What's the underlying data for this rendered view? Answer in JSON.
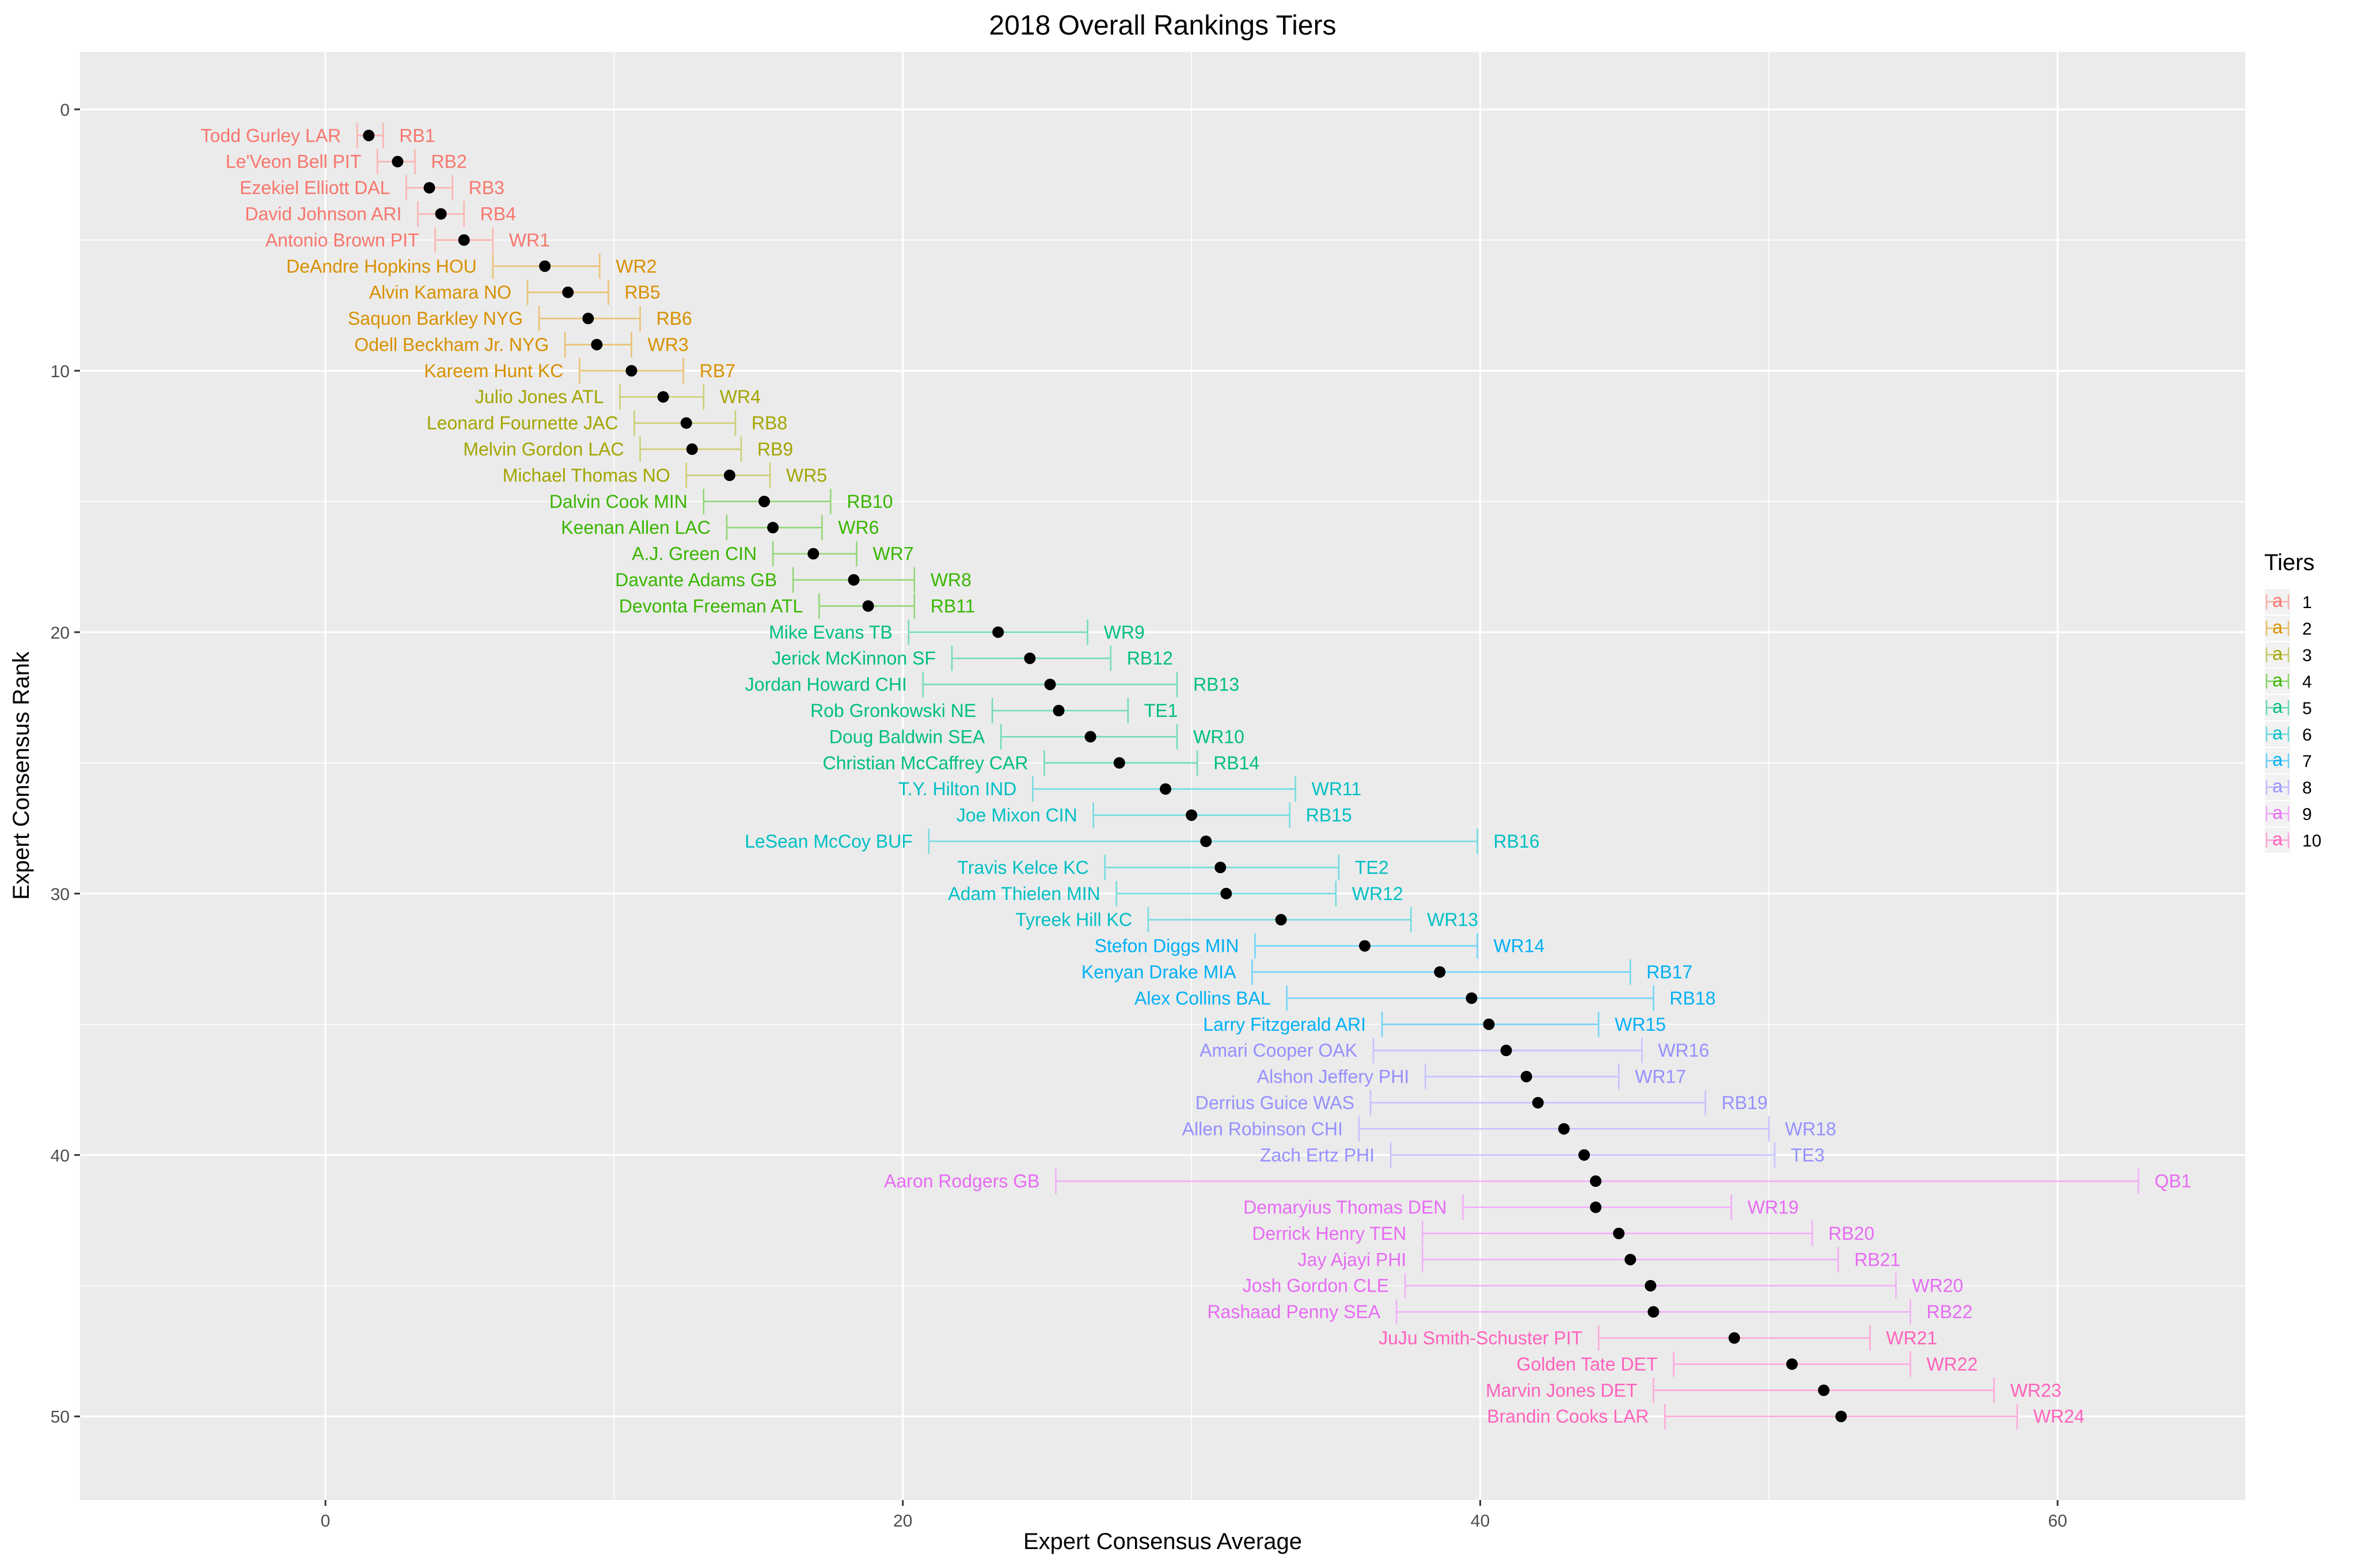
{
  "chart_data": {
    "type": "scatter",
    "title": "2018 Overall Rankings Tiers",
    "xlabel": "Expert Consensus Average",
    "ylabel": "Expert Consensus Rank",
    "xlim": [
      -8.5,
      66.5
    ],
    "ylim": [
      -2.2,
      53.2
    ],
    "y_reversed": true,
    "x_ticks": [
      0,
      20,
      40,
      60
    ],
    "y_ticks": [
      0,
      10,
      20,
      30,
      40,
      50
    ],
    "grid": true,
    "legend": {
      "title": "Tiers",
      "placement": "right",
      "entries": [
        "1",
        "2",
        "3",
        "4",
        "5",
        "6",
        "7",
        "8",
        "9",
        "10"
      ],
      "glyph": "a"
    },
    "tier_colors": [
      "#F8766D",
      "#D89000",
      "#A3A500",
      "#39B600",
      "#00BF7D",
      "#00BFC4",
      "#00B0F6",
      "#9590FF",
      "#E76BF3",
      "#FF62BC"
    ],
    "points": [
      {
        "rank": 1,
        "name": "Todd Gurley LAR",
        "pos": "RB1",
        "avg": 1.5,
        "lo": 1.1,
        "hi": 2.0,
        "tier": 1
      },
      {
        "rank": 2,
        "name": "Le'Veon Bell PIT",
        "pos": "RB2",
        "avg": 2.5,
        "lo": 1.8,
        "hi": 3.1,
        "tier": 1
      },
      {
        "rank": 3,
        "name": "Ezekiel Elliott DAL",
        "pos": "RB3",
        "avg": 3.6,
        "lo": 2.8,
        "hi": 4.4,
        "tier": 1
      },
      {
        "rank": 4,
        "name": "David Johnson ARI",
        "pos": "RB4",
        "avg": 4.0,
        "lo": 3.2,
        "hi": 4.8,
        "tier": 1
      },
      {
        "rank": 5,
        "name": "Antonio Brown PIT",
        "pos": "WR1",
        "avg": 4.8,
        "lo": 3.8,
        "hi": 5.8,
        "tier": 1
      },
      {
        "rank": 6,
        "name": "DeAndre Hopkins HOU",
        "pos": "WR2",
        "avg": 7.6,
        "lo": 5.8,
        "hi": 9.5,
        "tier": 2
      },
      {
        "rank": 7,
        "name": "Alvin Kamara NO",
        "pos": "RB5",
        "avg": 8.4,
        "lo": 7.0,
        "hi": 9.8,
        "tier": 2
      },
      {
        "rank": 8,
        "name": "Saquon Barkley NYG",
        "pos": "RB6",
        "avg": 9.1,
        "lo": 7.4,
        "hi": 10.9,
        "tier": 2
      },
      {
        "rank": 9,
        "name": "Odell Beckham Jr. NYG",
        "pos": "WR3",
        "avg": 9.4,
        "lo": 8.3,
        "hi": 10.6,
        "tier": 2
      },
      {
        "rank": 10,
        "name": "Kareem Hunt KC",
        "pos": "RB7",
        "avg": 10.6,
        "lo": 8.8,
        "hi": 12.4,
        "tier": 2
      },
      {
        "rank": 11,
        "name": "Julio Jones ATL",
        "pos": "WR4",
        "avg": 11.7,
        "lo": 10.2,
        "hi": 13.1,
        "tier": 3
      },
      {
        "rank": 12,
        "name": "Leonard Fournette JAC",
        "pos": "RB8",
        "avg": 12.5,
        "lo": 10.7,
        "hi": 14.2,
        "tier": 3
      },
      {
        "rank": 13,
        "name": "Melvin Gordon LAC",
        "pos": "RB9",
        "avg": 12.7,
        "lo": 10.9,
        "hi": 14.4,
        "tier": 3
      },
      {
        "rank": 14,
        "name": "Michael Thomas NO",
        "pos": "WR5",
        "avg": 14.0,
        "lo": 12.5,
        "hi": 15.4,
        "tier": 3
      },
      {
        "rank": 15,
        "name": "Dalvin Cook MIN",
        "pos": "RB10",
        "avg": 15.2,
        "lo": 13.1,
        "hi": 17.5,
        "tier": 4
      },
      {
        "rank": 16,
        "name": "Keenan Allen LAC",
        "pos": "WR6",
        "avg": 15.5,
        "lo": 13.9,
        "hi": 17.2,
        "tier": 4
      },
      {
        "rank": 17,
        "name": "A.J. Green CIN",
        "pos": "WR7",
        "avg": 16.9,
        "lo": 15.5,
        "hi": 18.4,
        "tier": 4
      },
      {
        "rank": 18,
        "name": "Davante Adams GB",
        "pos": "WR8",
        "avg": 18.3,
        "lo": 16.2,
        "hi": 20.4,
        "tier": 4
      },
      {
        "rank": 19,
        "name": "Devonta Freeman ATL",
        "pos": "RB11",
        "avg": 18.8,
        "lo": 17.1,
        "hi": 20.4,
        "tier": 4
      },
      {
        "rank": 20,
        "name": "Mike Evans TB",
        "pos": "WR9",
        "avg": 23.3,
        "lo": 20.2,
        "hi": 26.4,
        "tier": 5
      },
      {
        "rank": 21,
        "name": "Jerick McKinnon SF",
        "pos": "RB12",
        "avg": 24.4,
        "lo": 21.7,
        "hi": 27.2,
        "tier": 5
      },
      {
        "rank": 22,
        "name": "Jordan Howard CHI",
        "pos": "RB13",
        "avg": 25.1,
        "lo": 20.7,
        "hi": 29.5,
        "tier": 5
      },
      {
        "rank": 23,
        "name": "Rob Gronkowski NE",
        "pos": "TE1",
        "avg": 25.4,
        "lo": 23.1,
        "hi": 27.8,
        "tier": 5
      },
      {
        "rank": 24,
        "name": "Doug Baldwin SEA",
        "pos": "WR10",
        "avg": 26.5,
        "lo": 23.4,
        "hi": 29.5,
        "tier": 5
      },
      {
        "rank": 25,
        "name": "Christian McCaffrey CAR",
        "pos": "RB14",
        "avg": 27.5,
        "lo": 24.9,
        "hi": 30.2,
        "tier": 5
      },
      {
        "rank": 26,
        "name": "T.Y. Hilton IND",
        "pos": "WR11",
        "avg": 29.1,
        "lo": 24.5,
        "hi": 33.6,
        "tier": 6
      },
      {
        "rank": 27,
        "name": "Joe Mixon CIN",
        "pos": "RB15",
        "avg": 30.0,
        "lo": 26.6,
        "hi": 33.4,
        "tier": 6
      },
      {
        "rank": 28,
        "name": "LeSean McCoy BUF",
        "pos": "RB16",
        "avg": 30.5,
        "lo": 20.9,
        "hi": 39.9,
        "tier": 6
      },
      {
        "rank": 29,
        "name": "Travis Kelce KC",
        "pos": "TE2",
        "avg": 31.0,
        "lo": 27.0,
        "hi": 35.1,
        "tier": 6
      },
      {
        "rank": 30,
        "name": "Adam Thielen MIN",
        "pos": "WR12",
        "avg": 31.2,
        "lo": 27.4,
        "hi": 35.0,
        "tier": 6
      },
      {
        "rank": 31,
        "name": "Tyreek Hill KC",
        "pos": "WR13",
        "avg": 33.1,
        "lo": 28.5,
        "hi": 37.6,
        "tier": 6
      },
      {
        "rank": 32,
        "name": "Stefon Diggs MIN",
        "pos": "WR14",
        "avg": 36.0,
        "lo": 32.2,
        "hi": 39.9,
        "tier": 7
      },
      {
        "rank": 33,
        "name": "Kenyan Drake MIA",
        "pos": "RB17",
        "avg": 38.6,
        "lo": 32.1,
        "hi": 45.2,
        "tier": 7
      },
      {
        "rank": 34,
        "name": "Alex Collins BAL",
        "pos": "RB18",
        "avg": 39.7,
        "lo": 33.3,
        "hi": 46.0,
        "tier": 7
      },
      {
        "rank": 35,
        "name": "Larry Fitzgerald ARI",
        "pos": "WR15",
        "avg": 40.3,
        "lo": 36.6,
        "hi": 44.1,
        "tier": 7
      },
      {
        "rank": 36,
        "name": "Amari Cooper OAK",
        "pos": "WR16",
        "avg": 40.9,
        "lo": 36.3,
        "hi": 45.6,
        "tier": 8
      },
      {
        "rank": 37,
        "name": "Alshon Jeffery PHI",
        "pos": "WR17",
        "avg": 41.6,
        "lo": 38.1,
        "hi": 44.8,
        "tier": 8
      },
      {
        "rank": 38,
        "name": "Derrius Guice WAS",
        "pos": "RB19",
        "avg": 42.0,
        "lo": 36.2,
        "hi": 47.8,
        "tier": 8
      },
      {
        "rank": 39,
        "name": "Allen Robinson CHI",
        "pos": "WR18",
        "avg": 42.9,
        "lo": 35.8,
        "hi": 50.0,
        "tier": 8
      },
      {
        "rank": 40,
        "name": "Zach Ertz PHI",
        "pos": "TE3",
        "avg": 43.6,
        "lo": 36.9,
        "hi": 50.2,
        "tier": 8
      },
      {
        "rank": 41,
        "name": "Aaron Rodgers GB",
        "pos": "QB1",
        "avg": 44.0,
        "lo": 25.3,
        "hi": 62.8,
        "tier": 9
      },
      {
        "rank": 42,
        "name": "Demaryius Thomas DEN",
        "pos": "WR19",
        "avg": 44.0,
        "lo": 39.4,
        "hi": 48.7,
        "tier": 9
      },
      {
        "rank": 43,
        "name": "Derrick Henry TEN",
        "pos": "RB20",
        "avg": 44.8,
        "lo": 38.0,
        "hi": 51.5,
        "tier": 9
      },
      {
        "rank": 44,
        "name": "Jay Ajayi PHI",
        "pos": "RB21",
        "avg": 45.2,
        "lo": 38.0,
        "hi": 52.4,
        "tier": 9
      },
      {
        "rank": 45,
        "name": "Josh Gordon CLE",
        "pos": "WR20",
        "avg": 45.9,
        "lo": 37.4,
        "hi": 54.4,
        "tier": 9
      },
      {
        "rank": 46,
        "name": "Rashaad Penny SEA",
        "pos": "RB22",
        "avg": 46.0,
        "lo": 37.1,
        "hi": 54.9,
        "tier": 9
      },
      {
        "rank": 47,
        "name": "JuJu Smith-Schuster PIT",
        "pos": "WR21",
        "avg": 48.8,
        "lo": 44.1,
        "hi": 53.5,
        "tier": 10
      },
      {
        "rank": 48,
        "name": "Golden Tate DET",
        "pos": "WR22",
        "avg": 50.8,
        "lo": 46.7,
        "hi": 54.9,
        "tier": 10
      },
      {
        "rank": 49,
        "name": "Marvin Jones DET",
        "pos": "WR23",
        "avg": 51.9,
        "lo": 46.0,
        "hi": 57.8,
        "tier": 10
      },
      {
        "rank": 50,
        "name": "Brandin Cooks LAR",
        "pos": "WR24",
        "avg": 52.5,
        "lo": 46.4,
        "hi": 58.6,
        "tier": 10
      }
    ]
  }
}
